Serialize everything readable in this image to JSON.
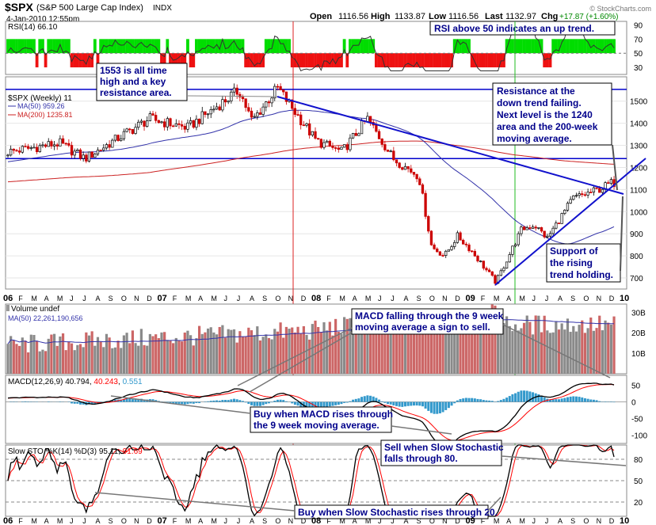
{
  "header": {
    "ticker": "$SPX",
    "name": "(S&P 500 Large Cap Index)",
    "exchange": "INDX",
    "datetime": "4-Jan-2010 12:55pm",
    "open_label": "Open",
    "open": "1116.56",
    "high_label": "High",
    "high": "1133.87",
    "low_label": "Low",
    "low": "1116.56",
    "last_label": "Last",
    "last": "1132.97",
    "chg_label": "Chg",
    "chg": "+17.87 (+1.60%)",
    "copyright": "© StockCharts.com"
  },
  "colors": {
    "up": "#000000",
    "down": "#cc0000",
    "ma50": "#3333aa",
    "ma200": "#cc2222",
    "macd_signal": "#ff0000",
    "histogram": "#3399cc",
    "rsi_green": "#00dd00",
    "rsi_red": "#ee1111",
    "annotation_text": "#00008b",
    "trendline": "#0000cc",
    "vol_up": "#8a8a8a",
    "vol_down": "#cc6666"
  },
  "x_months": [
    "06",
    "F",
    "M",
    "A",
    "M",
    "J",
    "J",
    "A",
    "S",
    "O",
    "N",
    "D",
    "07",
    "F",
    "M",
    "A",
    "M",
    "J",
    "J",
    "A",
    "S",
    "O",
    "N",
    "D",
    "08",
    "F",
    "M",
    "A",
    "M",
    "J",
    "J",
    "A",
    "S",
    "O",
    "N",
    "D",
    "09",
    "F",
    "M",
    "A",
    "M",
    "J",
    "J",
    "A",
    "S",
    "O",
    "N",
    "D",
    "10"
  ],
  "chart_data": [
    {
      "type": "line",
      "panel": "rsi",
      "legend": "RSI(14) 66.10",
      "y_ticks": [
        30,
        50,
        70,
        90
      ],
      "ylim": [
        20,
        95
      ],
      "annotation": "RSI above 50 indicates an up trend."
    },
    {
      "type": "candlestick",
      "panel": "price",
      "legend_title": "$SPX (Weekly) 11",
      "series": [
        {
          "name": "MA(50) 959.26"
        },
        {
          "name": "MA(200) 1235.81"
        }
      ],
      "y_ticks": [
        700,
        800,
        900,
        1000,
        1100,
        1200,
        1300,
        1400,
        1500
      ],
      "ylim": [
        650,
        1610
      ],
      "horizontal_lines": [
        1553,
        1240
      ],
      "key_points": [
        {
          "x": "2006-01",
          "y": 1270
        },
        {
          "x": "2006-05",
          "y": 1310
        },
        {
          "x": "2006-07",
          "y": 1240
        },
        {
          "x": "2006-12",
          "y": 1420
        },
        {
          "x": "2007-03",
          "y": 1380
        },
        {
          "x": "2007-07",
          "y": 1550
        },
        {
          "x": "2007-08",
          "y": 1410
        },
        {
          "x": "2007-10",
          "y": 1560
        },
        {
          "x": "2008-01",
          "y": 1320
        },
        {
          "x": "2008-03",
          "y": 1270
        },
        {
          "x": "2008-05",
          "y": 1420
        },
        {
          "x": "2008-07",
          "y": 1240
        },
        {
          "x": "2008-09",
          "y": 1160
        },
        {
          "x": "2008-10",
          "y": 840
        },
        {
          "x": "2008-11",
          "y": 800
        },
        {
          "x": "2008-12",
          "y": 890
        },
        {
          "x": "2009-01",
          "y": 830
        },
        {
          "x": "2009-03",
          "y": 680
        },
        {
          "x": "2009-05",
          "y": 920
        },
        {
          "x": "2009-06",
          "y": 940
        },
        {
          "x": "2009-07",
          "y": 880
        },
        {
          "x": "2009-09",
          "y": 1060
        },
        {
          "x": "2009-11",
          "y": 1100
        },
        {
          "x": "2009-12",
          "y": 1130
        }
      ],
      "annotations": [
        "1553 is all time high and a key resistance area.",
        "Resistance at the down trend failing. Next level is the 1240 area and the 200-week moving average.",
        "Support of the rising trend holding."
      ]
    },
    {
      "type": "bar",
      "panel": "volume",
      "legend": "Volume undef",
      "series": [
        {
          "name": "MA(50) 22,261,190,656"
        }
      ],
      "y_ticks": [
        "10B",
        "20B",
        "30B"
      ],
      "annotation": "MACD falling through the 9 week moving average a sign to sell."
    },
    {
      "type": "line",
      "panel": "macd",
      "legend_label": "MACD(12,26,9)",
      "values": [
        "40.794",
        "40.243",
        "0.551"
      ],
      "y_ticks": [
        50,
        0,
        -50,
        -100
      ],
      "ylim": [
        -125,
        80
      ],
      "annotation": "Buy when MACD rises through the 9 week moving average."
    },
    {
      "type": "line",
      "panel": "stochastic",
      "legend_label": "Slow STO %K(14) %D(3)",
      "values": [
        "95.11",
        "91.69"
      ],
      "y_ticks": [
        20,
        50,
        80
      ],
      "ylim": [
        0,
        100
      ],
      "annotations": [
        "Sell when Slow Stochastic falls through 80.",
        "Buy when Slow Stochastic rises through 20."
      ]
    }
  ]
}
